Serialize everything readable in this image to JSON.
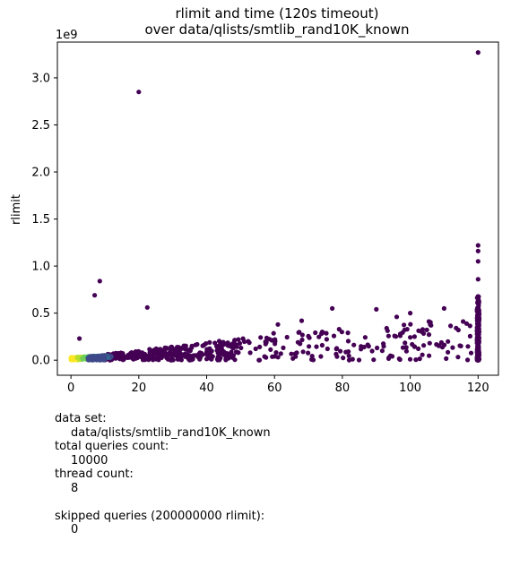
{
  "chart_data": {
    "type": "scatter",
    "title": "rlimit and time (120s timeout)",
    "subtitle": "over data/qlists/smtlib_rand10K_known",
    "xlabel": "",
    "ylabel": "rlimit",
    "y_scale_label": "1e9",
    "xlim": [
      -4,
      126
    ],
    "ylim": [
      -0.16,
      3.38
    ],
    "x_ticks": [
      0,
      20,
      40,
      60,
      80,
      100,
      120
    ],
    "y_ticks": [
      0.0,
      0.5,
      1.0,
      1.5,
      2.0,
      2.5,
      3.0
    ],
    "x_tick_labels": [
      "0",
      "20",
      "40",
      "60",
      "80",
      "100",
      "120"
    ],
    "y_tick_labels": [
      "0.0",
      "0.5",
      "1.0",
      "1.5",
      "2.0",
      "2.5",
      "3.0"
    ],
    "grid": false,
    "legend": "none",
    "color_scale": "viridis (point density: yellow high, purple low)",
    "colors": {
      "low_density": "#440154",
      "mid_density": "#21918c",
      "high_density": "#fde725"
    },
    "outliers": [
      {
        "x": 120,
        "y": 3.27
      },
      {
        "x": 20,
        "y": 2.85
      },
      {
        "x": 120,
        "y": 1.22
      },
      {
        "x": 120,
        "y": 1.16
      },
      {
        "x": 120,
        "y": 1.05
      },
      {
        "x": 120,
        "y": 0.86
      },
      {
        "x": 8.5,
        "y": 0.84
      },
      {
        "x": 7,
        "y": 0.69
      },
      {
        "x": 22.5,
        "y": 0.56
      },
      {
        "x": 77,
        "y": 0.55
      },
      {
        "x": 90,
        "y": 0.54
      },
      {
        "x": 110,
        "y": 0.55
      },
      {
        "x": 2.5,
        "y": 0.23
      },
      {
        "x": 61,
        "y": 0.38
      },
      {
        "x": 68,
        "y": 0.42
      },
      {
        "x": 100,
        "y": 0.5
      },
      {
        "x": 96,
        "y": 0.46
      },
      {
        "x": 83,
        "y": 0.01
      }
    ]
  },
  "info_panel": [
    {
      "text": "data set:",
      "indent": false
    },
    {
      "text": "data/qlists/smtlib_rand10K_known",
      "indent": true
    },
    {
      "text": "total queries count:",
      "indent": false
    },
    {
      "text": "10000",
      "indent": true
    },
    {
      "text": "thread count:",
      "indent": false
    },
    {
      "text": "8",
      "indent": true
    },
    {
      "text": "",
      "indent": false
    },
    {
      "text": "skipped queries (200000000 rlimit):",
      "indent": false
    },
    {
      "text": "0",
      "indent": true
    }
  ]
}
